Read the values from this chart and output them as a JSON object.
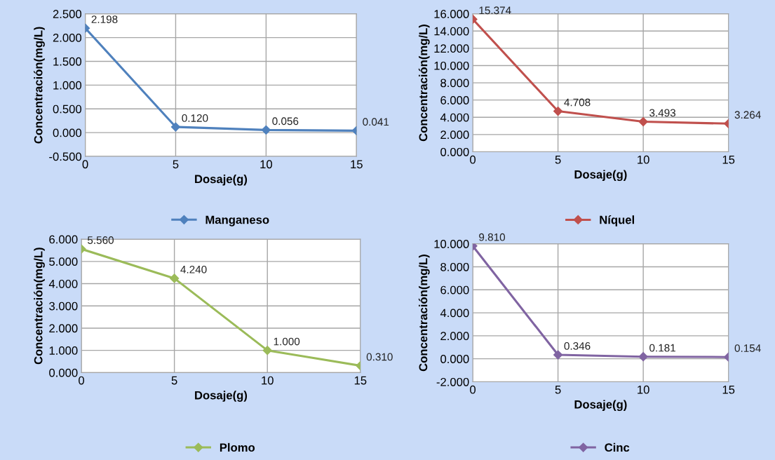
{
  "chart_data": [
    {
      "type": "line",
      "xlabel": "Dosaje(g)",
      "ylabel": "Concentración(mg/L)",
      "x": [
        0,
        5,
        10,
        15
      ],
      "xlim": [
        0,
        15
      ],
      "xticks": [
        0,
        5,
        10,
        15
      ],
      "ylim": [
        -0.5,
        2.5
      ],
      "yticks": [
        {
          "value": -0.5,
          "label": "-0.500"
        },
        {
          "value": 0,
          "label": "0.000"
        },
        {
          "value": 0.5,
          "label": "0.500"
        },
        {
          "value": 1,
          "label": "1.000"
        },
        {
          "value": 1.5,
          "label": "1.500"
        },
        {
          "value": 2,
          "label": "2.000"
        },
        {
          "value": 2.5,
          "label": "2.500"
        }
      ],
      "grid": true,
      "legend": "bottom",
      "marker": "diamond",
      "series": [
        {
          "name": "Manganeso",
          "color": "#4f81bd",
          "values": [
            2.198,
            0.12,
            0.056,
            0.041
          ],
          "value_labels": [
            "2.198",
            "0.120",
            "0.056",
            "0.041"
          ]
        }
      ]
    },
    {
      "type": "line",
      "xlabel": "Dosaje(g)",
      "ylabel": "Concentración(mg/L)",
      "x": [
        0,
        5,
        10,
        15
      ],
      "xlim": [
        0,
        15
      ],
      "xticks": [
        0,
        5,
        10,
        15
      ],
      "ylim": [
        0,
        16
      ],
      "yticks": [
        {
          "value": 0,
          "label": "0.000"
        },
        {
          "value": 2,
          "label": "2.000"
        },
        {
          "value": 4,
          "label": "4.000"
        },
        {
          "value": 6,
          "label": "6.000"
        },
        {
          "value": 8,
          "label": "8.000"
        },
        {
          "value": 10,
          "label": "10.000"
        },
        {
          "value": 12,
          "label": "12.000"
        },
        {
          "value": 14,
          "label": "14.000"
        },
        {
          "value": 16,
          "label": "16.000"
        }
      ],
      "grid": true,
      "legend": "bottom",
      "marker": "diamond",
      "series": [
        {
          "name": "Níquel",
          "color": "#c0504d",
          "values": [
            15.374,
            4.708,
            3.493,
            3.264
          ],
          "value_labels": [
            "15.374",
            "4.708",
            "3.493",
            "3.264"
          ]
        }
      ]
    },
    {
      "type": "line",
      "xlabel": "Dosaje(g)",
      "ylabel": "Concentración(mg/L)",
      "x": [
        0,
        5,
        10,
        15
      ],
      "xlim": [
        0,
        15
      ],
      "xticks": [
        0,
        5,
        10,
        15
      ],
      "ylim": [
        0,
        6
      ],
      "yticks": [
        {
          "value": 0,
          "label": "0.000"
        },
        {
          "value": 1,
          "label": "1.000"
        },
        {
          "value": 2,
          "label": "2.000"
        },
        {
          "value": 3,
          "label": "3.000"
        },
        {
          "value": 4,
          "label": "4.000"
        },
        {
          "value": 5,
          "label": "5.000"
        },
        {
          "value": 6,
          "label": "6.000"
        }
      ],
      "grid": true,
      "legend": "bottom",
      "marker": "diamond",
      "series": [
        {
          "name": "Plomo",
          "color": "#9bbb59",
          "values": [
            5.56,
            4.24,
            1.0,
            0.31
          ],
          "value_labels": [
            "5.560",
            "4.240",
            "1.000",
            "0.310"
          ]
        }
      ]
    },
    {
      "type": "line",
      "xlabel": "Dosaje(g)",
      "ylabel": "Concentración(mg/L)",
      "x": [
        0,
        5,
        10,
        15
      ],
      "xlim": [
        0,
        15
      ],
      "xticks": [
        0,
        5,
        10,
        15
      ],
      "ylim": [
        -2,
        10
      ],
      "yticks": [
        {
          "value": -2,
          "label": "-2.000"
        },
        {
          "value": 0,
          "label": "0.000"
        },
        {
          "value": 2,
          "label": "2.000"
        },
        {
          "value": 4,
          "label": "4.000"
        },
        {
          "value": 6,
          "label": "6.000"
        },
        {
          "value": 8,
          "label": "8.000"
        },
        {
          "value": 10,
          "label": "10.000"
        }
      ],
      "grid": true,
      "legend": "bottom",
      "marker": "diamond",
      "series": [
        {
          "name": "Cinc",
          "color": "#8064a2",
          "values": [
            9.81,
            0.346,
            0.181,
            0.154
          ],
          "value_labels": [
            "9.810",
            "0.346",
            "0.181",
            "0.154"
          ]
        }
      ]
    }
  ]
}
